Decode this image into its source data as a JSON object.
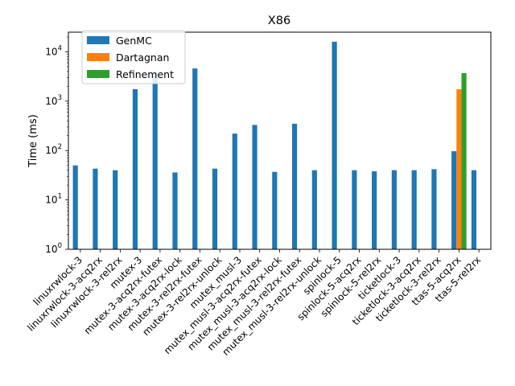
{
  "chart_data": {
    "type": "bar",
    "title": "X86",
    "xlabel": "",
    "ylabel": "Time (ms)",
    "yscale": "log",
    "ylim": [
      1,
      25000
    ],
    "yticks": [
      {
        "value": 1,
        "base": "10",
        "exp": "0"
      },
      {
        "value": 10,
        "base": "10",
        "exp": "1"
      },
      {
        "value": 100,
        "base": "10",
        "exp": "2"
      },
      {
        "value": 1000,
        "base": "10",
        "exp": "3"
      },
      {
        "value": 10000,
        "base": "10",
        "exp": "4"
      }
    ],
    "grid": false,
    "legend_position": "top-left",
    "categories": [
      "linuxrwlock-3",
      "linuxrwlock-3-acq2rx",
      "linuxrwlock-3-rel2rx",
      "mutex-3",
      "mutex-3-acq2rx-futex",
      "mutex-3-acq2rx-lock",
      "mutex-3-rel2rx-futex",
      "mutex-3-rel2rx-unlock",
      "mutex_musl-3",
      "mutex_musl-3-acq2rx-futex",
      "mutex_musl-3-acq2rx-lock",
      "mutex_musl-3-rel2rx-futex",
      "mutex_musl-3-rel2rx-unlock",
      "spinlock-5",
      "spinlock-5-acq2rx",
      "spinlock-5-rel2rx",
      "ticketlock-3",
      "ticketlock-3-acq2rx",
      "ticketlock-3-rel2rx",
      "ttas-5-acq2rx",
      "ttas-5-rel2rx"
    ],
    "series": [
      {
        "name": "GenMC",
        "color": "#1f77b4",
        "values": [
          50,
          43,
          40,
          1750,
          3800,
          36,
          4600,
          43,
          220,
          330,
          37,
          350,
          40,
          16000,
          40,
          38,
          40,
          40,
          42,
          97,
          40
        ]
      },
      {
        "name": "Dartagnan",
        "color": "#ff7f0e",
        "values": [
          null,
          null,
          null,
          null,
          null,
          null,
          null,
          null,
          null,
          null,
          null,
          null,
          null,
          null,
          null,
          null,
          null,
          null,
          null,
          1750,
          null
        ]
      },
      {
        "name": "Refinement",
        "color": "#2ca02c",
        "values": [
          null,
          null,
          null,
          null,
          null,
          null,
          null,
          null,
          null,
          null,
          null,
          null,
          null,
          null,
          null,
          null,
          null,
          null,
          null,
          3700,
          null
        ]
      }
    ]
  }
}
